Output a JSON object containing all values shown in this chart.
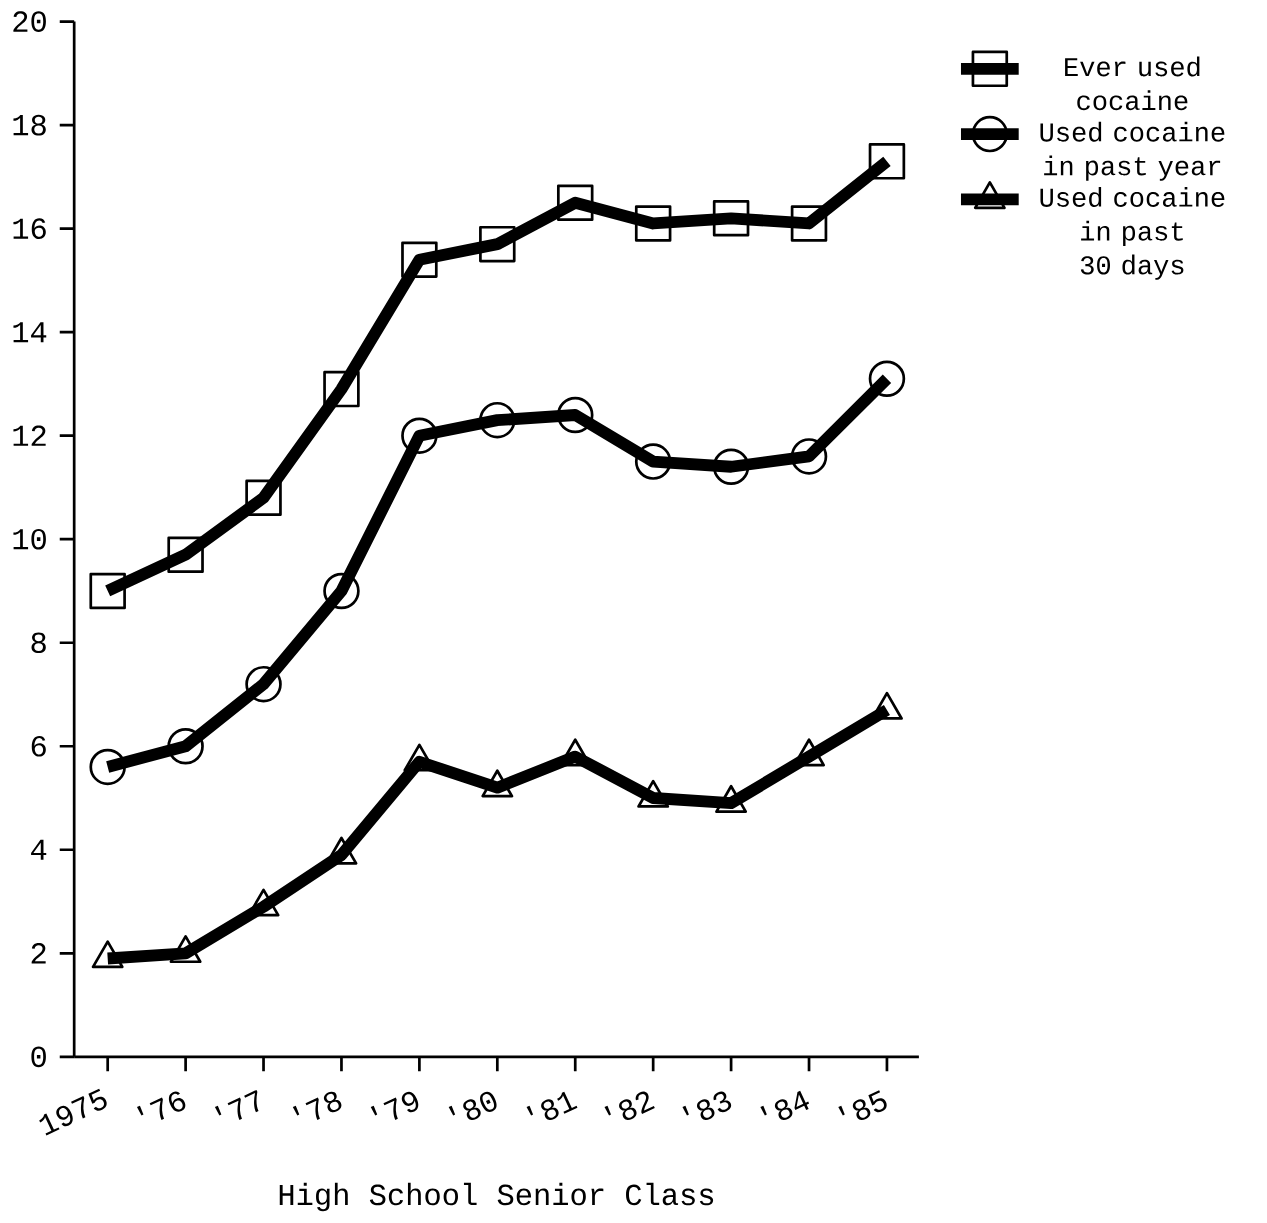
{
  "chart_data": {
    "type": "line",
    "xlabel": "High School Senior Class",
    "categories": [
      "1975",
      "'76",
      "'77",
      "'78",
      "'79",
      "'80",
      "'81",
      "'82",
      "'83",
      "'84",
      "'85"
    ],
    "ylim": [
      0,
      20
    ],
    "yticks": [
      0,
      2,
      4,
      6,
      8,
      10,
      12,
      14,
      16,
      18,
      20
    ],
    "grid": false,
    "legend": "top right",
    "line_style": "solid",
    "series": [
      {
        "name": "Ever used cocaine",
        "color": "#000000",
        "marker": "square",
        "values": [
          9.0,
          9.7,
          10.8,
          12.9,
          15.4,
          15.7,
          16.5,
          16.1,
          16.2,
          16.1,
          17.3
        ]
      },
      {
        "name": "Used cocaine in past year",
        "color": "#000000",
        "marker": "circle",
        "values": [
          5.6,
          6.0,
          7.2,
          9.0,
          12.0,
          12.3,
          12.4,
          11.5,
          11.4,
          11.6,
          13.1
        ]
      },
      {
        "name": "Used cocaine in past 30 days",
        "color": "#000000",
        "marker": "triangle",
        "values": [
          1.9,
          2.0,
          2.9,
          3.9,
          5.7,
          5.2,
          5.8,
          5.0,
          4.9,
          5.8,
          6.7
        ]
      }
    ]
  }
}
